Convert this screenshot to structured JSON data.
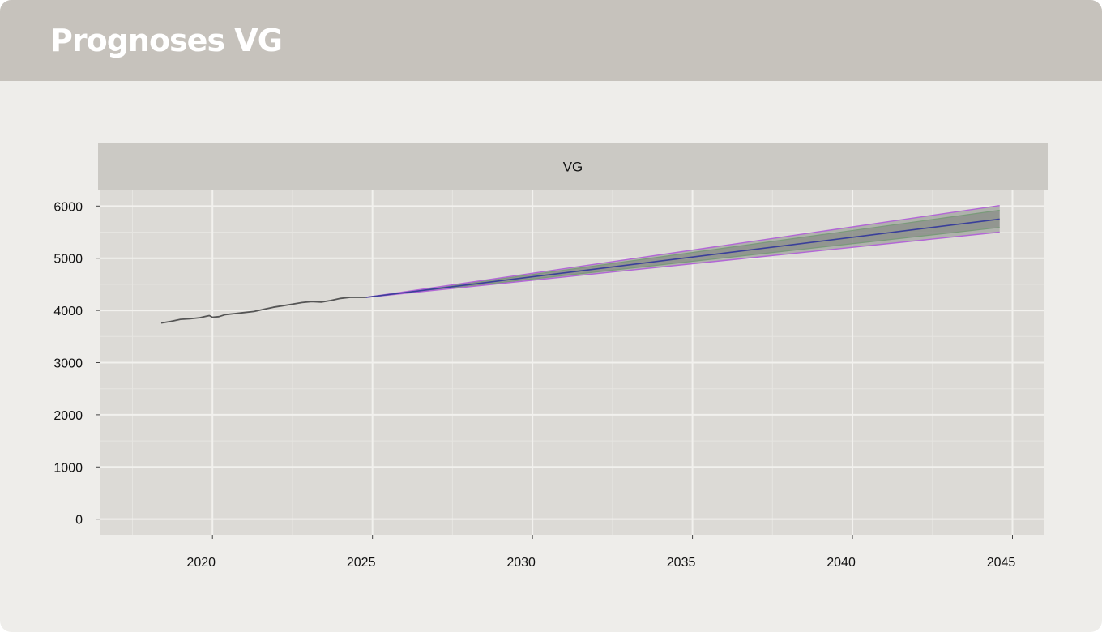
{
  "header": {
    "title": "Prognoses VG"
  },
  "chart_data": {
    "type": "line",
    "facet_label": "VG",
    "title": "",
    "xlabel": "",
    "ylabel": "",
    "xlim": [
      2016.5,
      2046.0
    ],
    "ylim": [
      -300,
      6300
    ],
    "x_ticks": [
      2020,
      2025,
      2030,
      2035,
      2040,
      2045
    ],
    "y_ticks": [
      0,
      1000,
      2000,
      3000,
      4000,
      5000,
      6000
    ],
    "grid": true,
    "legend": "none",
    "series": [
      {
        "role": "historical",
        "color": "#555555",
        "points": [
          [
            2018.4,
            3760
          ],
          [
            2018.7,
            3790
          ],
          [
            2019.0,
            3830
          ],
          [
            2019.3,
            3840
          ],
          [
            2019.6,
            3860
          ],
          [
            2019.9,
            3900
          ],
          [
            2020.0,
            3870
          ],
          [
            2020.2,
            3880
          ],
          [
            2020.4,
            3920
          ],
          [
            2020.7,
            3940
          ],
          [
            2021.0,
            3960
          ],
          [
            2021.3,
            3980
          ],
          [
            2021.6,
            4020
          ],
          [
            2021.9,
            4060
          ],
          [
            2022.2,
            4090
          ],
          [
            2022.5,
            4120
          ],
          [
            2022.8,
            4150
          ],
          [
            2023.1,
            4170
          ],
          [
            2023.4,
            4160
          ],
          [
            2023.7,
            4190
          ],
          [
            2024.0,
            4230
          ],
          [
            2024.3,
            4250
          ],
          [
            2024.6,
            4250
          ],
          [
            2024.8,
            4250
          ]
        ]
      },
      {
        "role": "forecast",
        "color": "#3a3f9a",
        "points": [
          [
            2024.8,
            4250
          ],
          [
            2044.6,
            5750
          ]
        ]
      },
      {
        "role": "band-inner-upper",
        "color": "#7a9a7a",
        "points": [
          [
            2024.8,
            4250
          ],
          [
            2044.6,
            5920
          ]
        ]
      },
      {
        "role": "band-inner-lower",
        "color": "#7a9a7a",
        "points": [
          [
            2024.8,
            4250
          ],
          [
            2044.6,
            5590
          ]
        ]
      },
      {
        "role": "band-outer-upper",
        "color": "#b266d6",
        "points": [
          [
            2024.8,
            4250
          ],
          [
            2044.6,
            6010
          ]
        ]
      },
      {
        "role": "band-outer-lower",
        "color": "#b266d6",
        "points": [
          [
            2024.8,
            4250
          ],
          [
            2044.6,
            5500
          ]
        ]
      }
    ],
    "colors": {
      "panel_bg": "#dcdad6",
      "strip_bg": "#cbc9c4",
      "grid_major": "#f2f1ee",
      "grid_minor": "#e6e5e1",
      "band_fill": "#8a8f8a"
    }
  }
}
